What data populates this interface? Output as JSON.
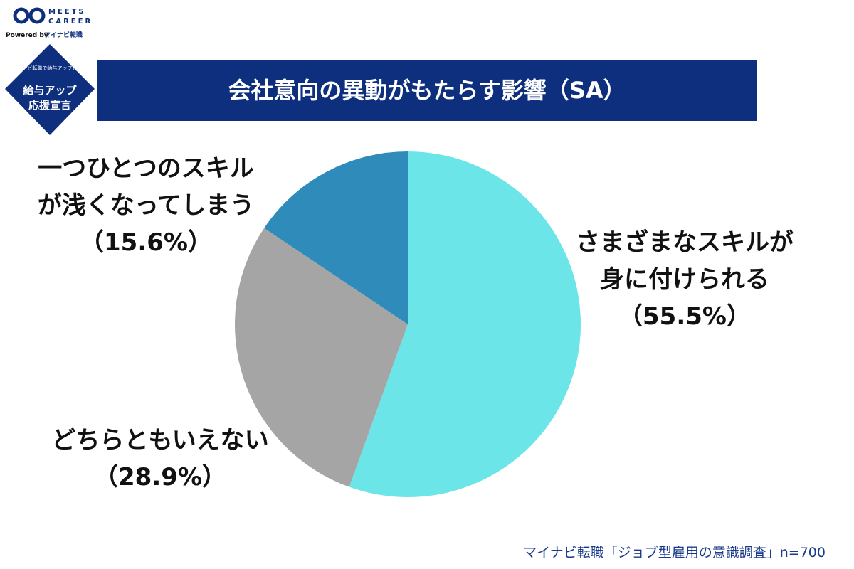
{
  "chart_data": {
    "type": "pie",
    "title": "会社意向の異動がもたらす影響（SA）",
    "categories": [
      [
        "さまざまなスキルが",
        "身に付けられる"
      ],
      [
        "どちらともいえない"
      ],
      [
        "一つひとつのスキル",
        "が浅くなってしまう"
      ]
    ],
    "values": [
      55.5,
      28.9,
      15.6
    ],
    "value_labels": [
      "（55.5%）",
      "（28.9%）",
      "（15.6%）"
    ],
    "colors": [
      "#6ce5e8",
      "#a5a5a5",
      "#2e8bba"
    ],
    "source": "マイナビ転職「ジョブ型雇用の意識調査」n=700"
  },
  "branding": {
    "logo_top": "MEETS",
    "logo_bottom": "CAREER",
    "powered": "Powered by",
    "partner": "マイナビ転職",
    "badge_small": "マイナビ転職で給与アップしよう",
    "badge_line1": "給与アップ",
    "badge_line2": "応援宣言"
  }
}
